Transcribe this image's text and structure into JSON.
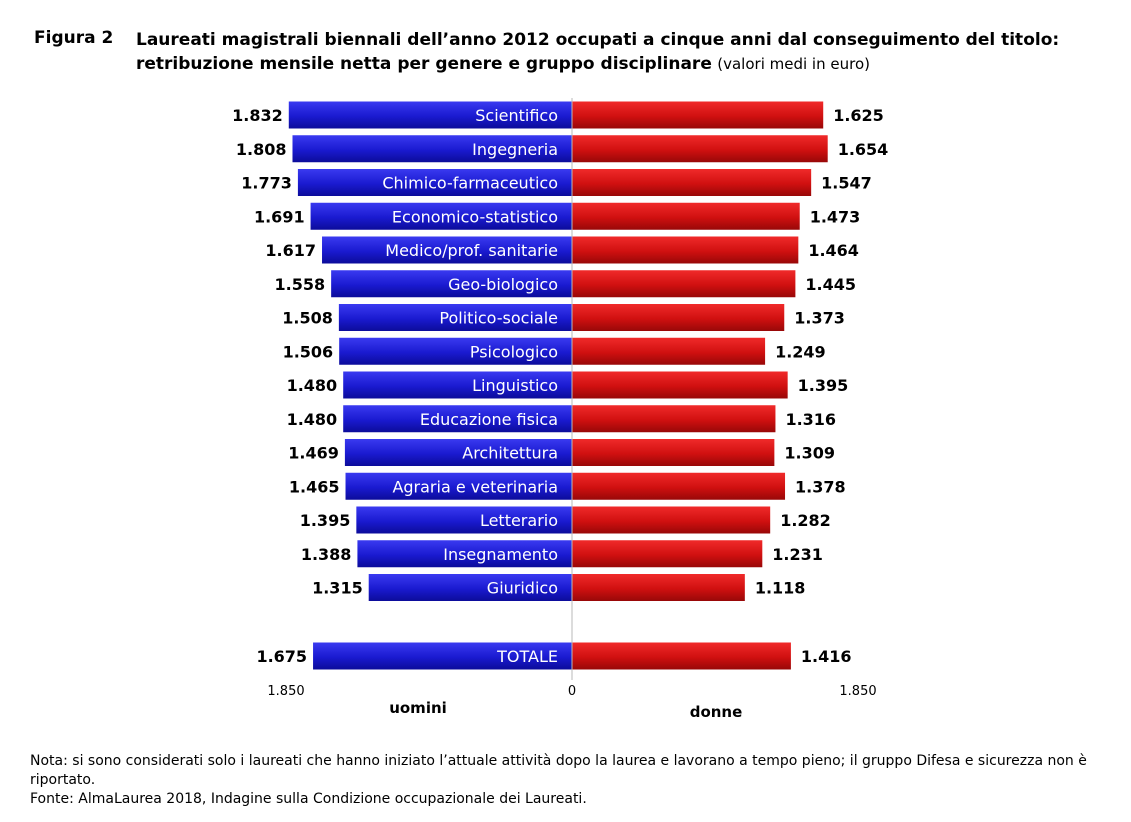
{
  "figure_label": "Figura 2",
  "title_bold": "Laureati magistrali biennali dell’anno 2012 occupati a cinque anni dal conseguimento del titolo: retribuzione mensile netta per genere e gruppo disciplinare",
  "title_light": "(valori medi in euro)",
  "notes": {
    "nota": "Nota: si sono considerati solo i laureati che hanno iniziato l’attuale attività dopo la laurea e lavorano a tempo pieno; il gruppo Difesa e sicurezza non è riportato.",
    "fonte": "Fonte: AlmaLaurea 2018, Indagine sulla Condizione occupazionale dei Laureati."
  },
  "colors": {
    "uomini": "#1a1ad0",
    "donne": "#d01010",
    "axis": "#b8b8b8",
    "label_text": "#ffffff"
  },
  "chart_data": {
    "type": "bar",
    "orientation": "horizontal-butterfly",
    "title": "Laureati magistrali biennali dell’anno 2012 occupati a cinque anni dal conseguimento del titolo: retribuzione mensile netta per genere e gruppo disciplinare",
    "categories": [
      "Scientifico",
      "Ingegneria",
      "Chimico-farmaceutico",
      "Economico-statistico",
      "Medico/prof. sanitarie",
      "Geo-biologico",
      "Politico-sociale",
      "Psicologico",
      "Linguistico",
      "Educazione fisica",
      "Architettura",
      "Agraria e veterinaria",
      "Letterario",
      "Insegnamento",
      "Giuridico"
    ],
    "series": [
      {
        "name": "uomini",
        "values": [
          1832,
          1808,
          1773,
          1691,
          1617,
          1558,
          1508,
          1506,
          1480,
          1480,
          1469,
          1465,
          1395,
          1388,
          1315
        ],
        "labels": [
          "1.832",
          "1.808",
          "1.773",
          "1.691",
          "1.617",
          "1.558",
          "1.508",
          "1.506",
          "1.480",
          "1.480",
          "1.469",
          "1.465",
          "1.395",
          "1.388",
          "1.315"
        ]
      },
      {
        "name": "donne",
        "values": [
          1625,
          1654,
          1547,
          1473,
          1464,
          1445,
          1373,
          1249,
          1395,
          1316,
          1309,
          1378,
          1282,
          1231,
          1118
        ],
        "labels": [
          "1.625",
          "1.654",
          "1.547",
          "1.473",
          "1.464",
          "1.445",
          "1.373",
          "1.249",
          "1.395",
          "1.316",
          "1.309",
          "1.378",
          "1.282",
          "1.231",
          "1.118"
        ]
      }
    ],
    "total": {
      "label": "TOTALE",
      "uomini": 1675,
      "uomini_label": "1.675",
      "donne": 1416,
      "donne_label": "1.416"
    },
    "axis": {
      "range": [
        0,
        1850
      ],
      "tick_labels": [
        "1.850",
        "0",
        "1.850"
      ]
    },
    "xlabel_left": "uomini",
    "xlabel_right": "donne",
    "grid": false
  }
}
